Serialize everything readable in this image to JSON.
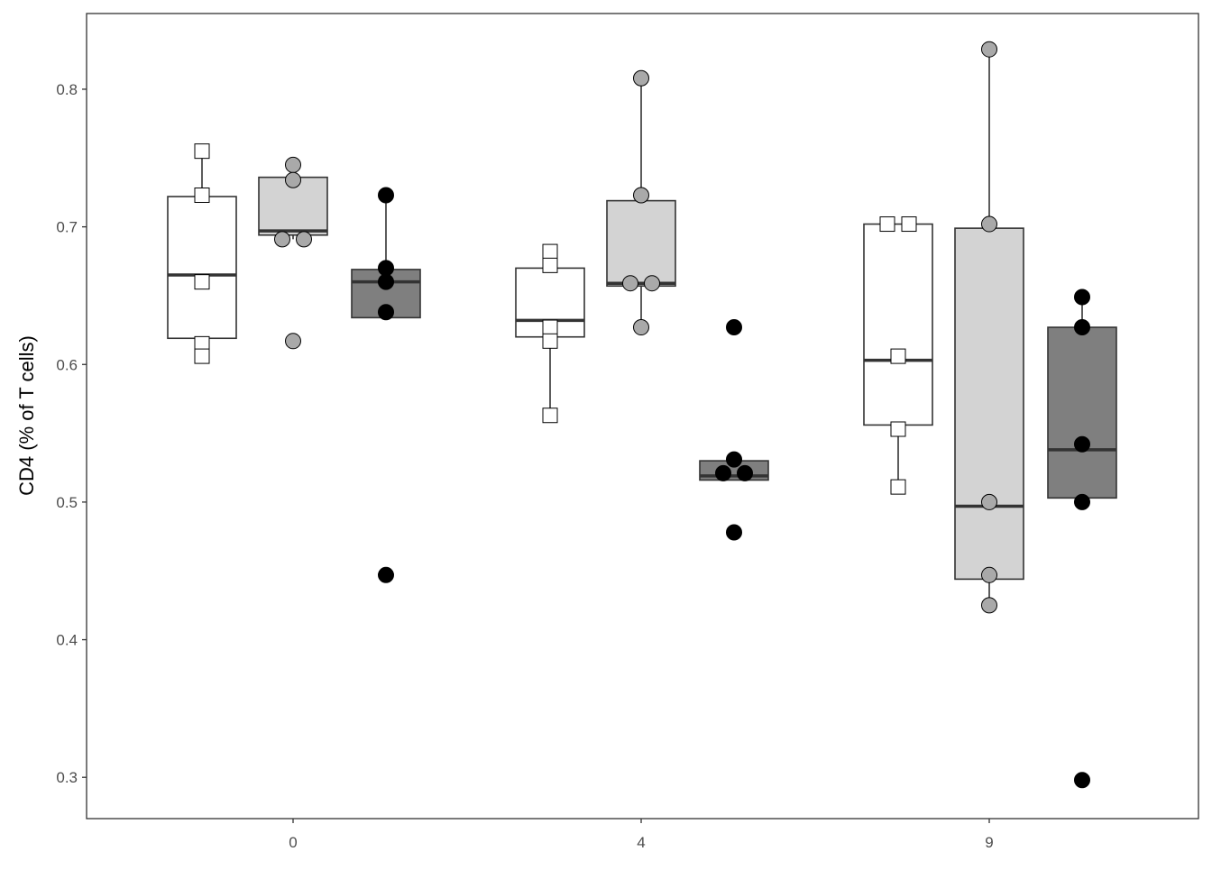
{
  "chart_data": {
    "type": "box",
    "title": "",
    "xlabel": "",
    "ylabel": "CD4 (% of T cells)",
    "ylim": [
      0.27,
      0.855
    ],
    "y_ticks": [
      "0.3",
      "0.4",
      "0.5",
      "0.6",
      "0.7",
      "0.8"
    ],
    "x_groups": [
      "0",
      "4",
      "9"
    ],
    "grid": false,
    "legend": "none",
    "series": [
      {
        "fill_color": "#ffffff",
        "point_shape": "square",
        "point_color": "#ffffff",
        "boxes": [
          {
            "x": "0",
            "q1": 0.619,
            "median": 0.665,
            "q3": 0.722,
            "whisker_low": 0.605,
            "whisker_high": 0.755,
            "points": [
              0.755,
              0.723,
              0.66,
              0.615,
              0.606
            ]
          },
          {
            "x": "4",
            "q1": 0.62,
            "median": 0.632,
            "q3": 0.67,
            "whisker_low": 0.563,
            "whisker_high": 0.682,
            "points": [
              0.682,
              0.672,
              0.627,
              0.617,
              0.563
            ]
          },
          {
            "x": "9",
            "q1": 0.556,
            "median": 0.603,
            "q3": 0.702,
            "whisker_low": 0.51,
            "whisker_high": 0.702,
            "points": [
              0.702,
              0.702,
              0.606,
              0.553,
              0.511
            ]
          }
        ]
      },
      {
        "fill_color": "#d3d3d3",
        "point_shape": "circle",
        "point_color": "#a9a9a9",
        "boxes": [
          {
            "x": "0",
            "q1": 0.694,
            "median": 0.697,
            "q3": 0.736,
            "whisker_low": 0.691,
            "whisker_high": 0.745,
            "points": [
              0.745,
              0.734,
              0.691,
              0.691,
              0.617
            ]
          },
          {
            "x": "4",
            "q1": 0.657,
            "median": 0.659,
            "q3": 0.719,
            "whisker_low": 0.627,
            "whisker_high": 0.808,
            "points": [
              0.808,
              0.723,
              0.659,
              0.659,
              0.627
            ]
          },
          {
            "x": "9",
            "q1": 0.444,
            "median": 0.497,
            "q3": 0.699,
            "whisker_low": 0.425,
            "whisker_high": 0.829,
            "points": [
              0.829,
              0.702,
              0.5,
              0.447,
              0.425
            ]
          }
        ]
      },
      {
        "fill_color": "#7f7f7f",
        "point_shape": "circle",
        "point_color": "#000000",
        "boxes": [
          {
            "x": "0",
            "q1": 0.634,
            "median": 0.66,
            "q3": 0.669,
            "whisker_low": 0.634,
            "whisker_high": 0.723,
            "points": [
              0.723,
              0.67,
              0.66,
              0.638,
              0.447
            ]
          },
          {
            "x": "4",
            "q1": 0.516,
            "median": 0.519,
            "q3": 0.53,
            "whisker_low": 0.516,
            "whisker_high": 0.53,
            "points": [
              0.627,
              0.531,
              0.521,
              0.521,
              0.478
            ]
          },
          {
            "x": "9",
            "q1": 0.503,
            "median": 0.538,
            "q3": 0.627,
            "whisker_low": 0.5,
            "whisker_high": 0.649,
            "points": [
              0.649,
              0.627,
              0.542,
              0.5,
              0.298
            ]
          }
        ]
      }
    ]
  }
}
